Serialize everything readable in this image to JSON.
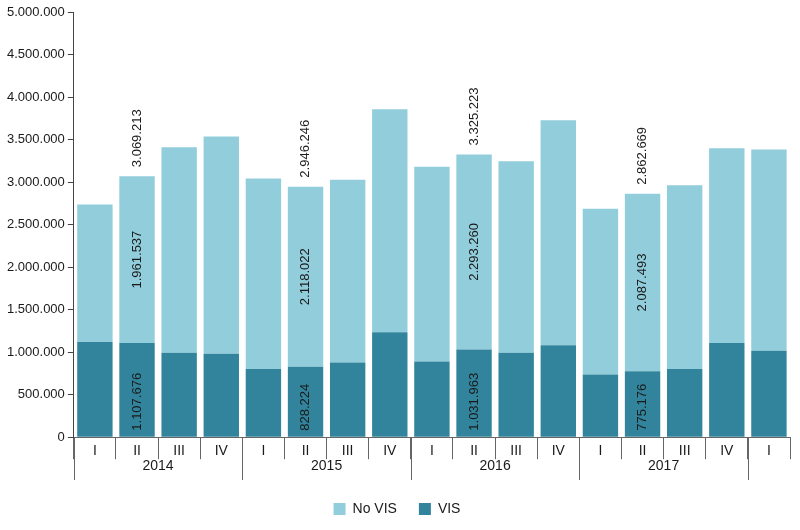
{
  "chart_data": {
    "type": "bar",
    "stacked": true,
    "grid": false,
    "legend": "bottom",
    "data_labels": true,
    "categories": [
      "I",
      "II",
      "III",
      "IV",
      "I",
      "II",
      "III",
      "IV",
      "I",
      "II",
      "III",
      "IV",
      "I",
      "II",
      "III",
      "IV",
      "I"
    ],
    "groups": [
      {
        "label": "2014",
        "size": 4
      },
      {
        "label": "2015",
        "size": 4
      },
      {
        "label": "2016",
        "size": 4
      },
      {
        "label": "2017",
        "size": 4
      }
    ],
    "series": [
      {
        "name": "VIS",
        "color": "#31849b",
        "values": [
          1120000,
          1107676,
          992000,
          980000,
          802000,
          828224,
          878000,
          1234000,
          891000,
          1031963,
          992000,
          1081000,
          738000,
          775176,
          802000,
          1107000,
          1018000
        ],
        "value_labels": [
          null,
          "1.107.676",
          null,
          null,
          null,
          "828.224",
          null,
          null,
          null,
          "1.031.963",
          null,
          null,
          null,
          "775.176",
          null,
          null,
          null
        ]
      },
      {
        "name": "No VIS",
        "color": "#92cddc",
        "values": [
          1615000,
          1961537,
          2418000,
          2557000,
          2239000,
          2118022,
          2150000,
          2621000,
          2290000,
          2293260,
          2252000,
          2647000,
          1947000,
          2087493,
          2162000,
          2290000,
          2366000
        ],
        "value_labels": [
          null,
          "1.961.537",
          null,
          null,
          null,
          "2.118.022",
          null,
          null,
          null,
          "2.293.260",
          null,
          null,
          null,
          "2.087.493",
          null,
          null,
          null
        ]
      }
    ],
    "total_labels": [
      null,
      "3.069.213",
      null,
      null,
      null,
      "2.946.246",
      null,
      null,
      null,
      "3.325.223",
      null,
      null,
      null,
      "2.862.669",
      null,
      null,
      null
    ],
    "ylim": [
      0,
      5000000
    ],
    "yticks": [
      0,
      {
        "value": 500000,
        "label": "500.000"
      },
      {
        "value": 1000000,
        "label": "1.000.000"
      },
      {
        "value": 1500000,
        "label": "1.500.000"
      },
      {
        "value": 2000000,
        "label": "2.000.000"
      },
      {
        "value": 2500000,
        "label": "2.500.000"
      },
      {
        "value": 3000000,
        "label": "3.000.000"
      },
      {
        "value": 3500000,
        "label": "3.500.000"
      },
      {
        "value": 4000000,
        "label": "4.000.000"
      },
      {
        "value": 4500000,
        "label": "4.500.000"
      },
      {
        "value": 5000000,
        "label": "5.000.000"
      }
    ]
  }
}
